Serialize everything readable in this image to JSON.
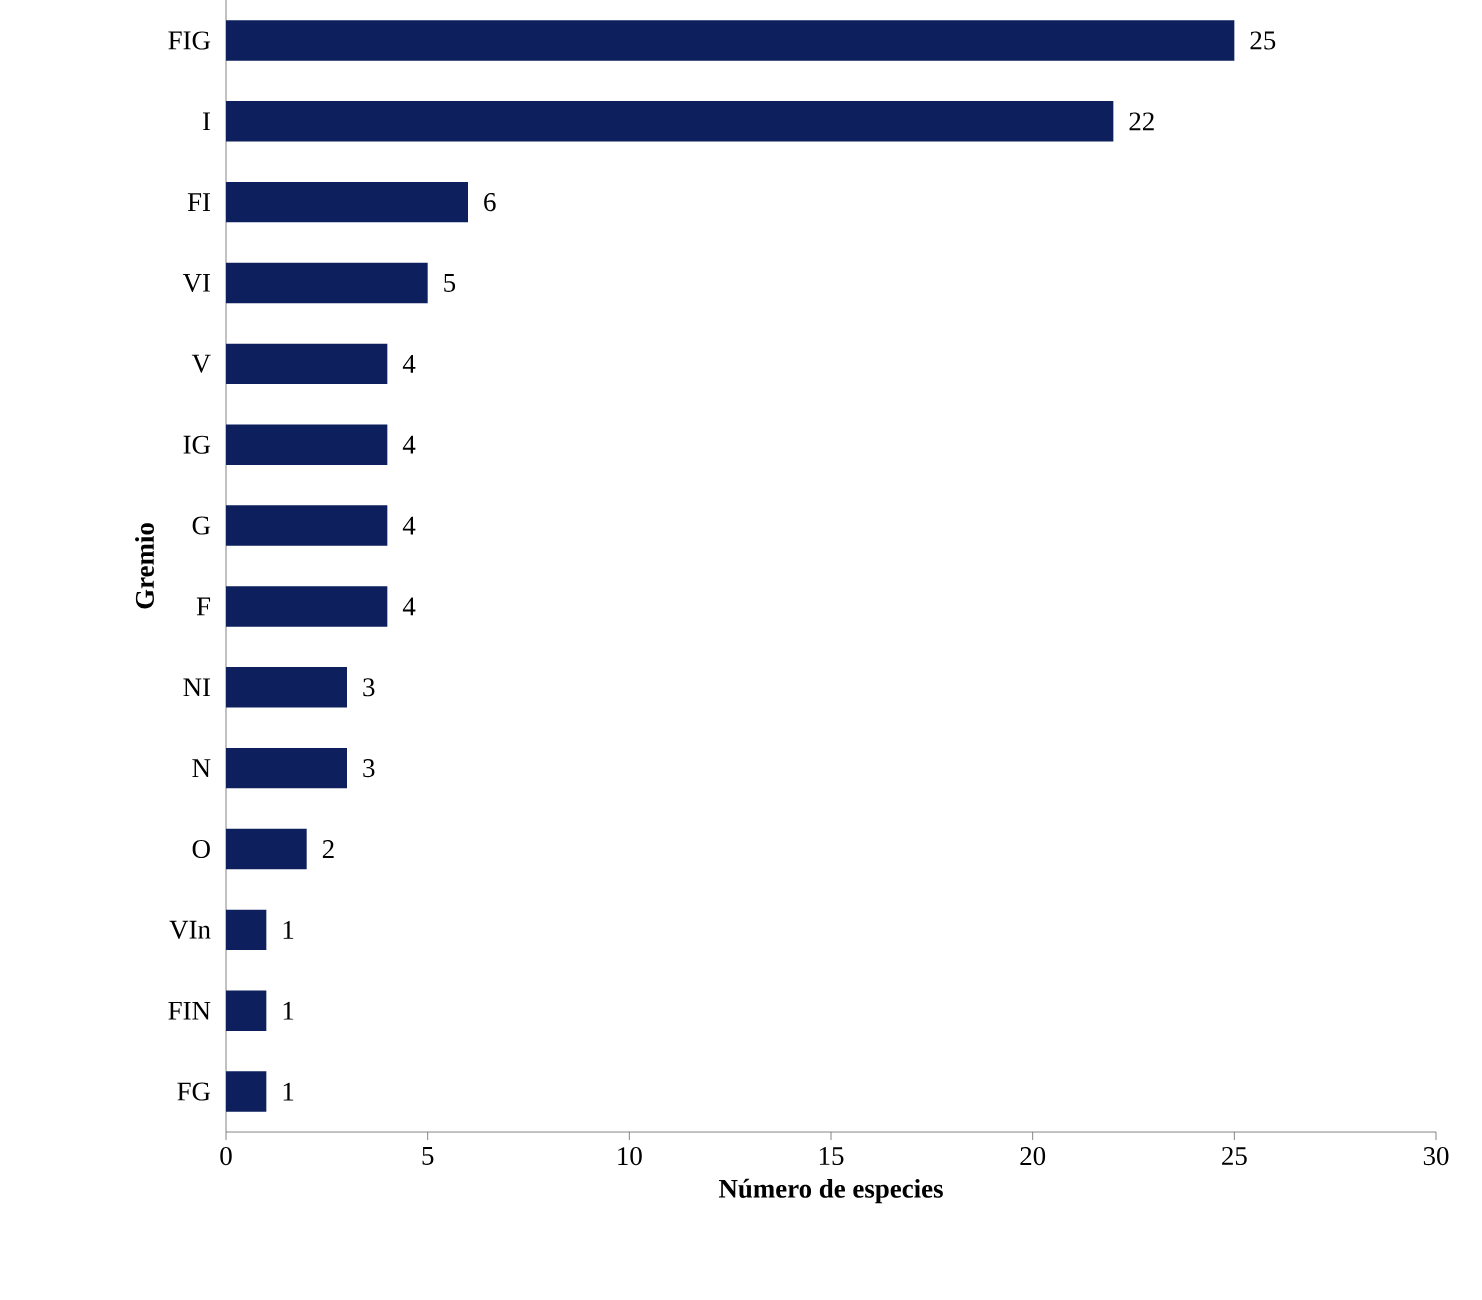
{
  "chart_data": {
    "type": "bar",
    "orientation": "horizontal",
    "xlabel": "Número de especies",
    "ylabel": "Gremio",
    "categories": [
      "FIG",
      "I",
      "FI",
      "VI",
      "V",
      "IG",
      "G",
      "F",
      "NI",
      "N",
      "O",
      "VIn",
      "FIN",
      "FG"
    ],
    "values": [
      25,
      22,
      6,
      5,
      4,
      4,
      4,
      4,
      3,
      3,
      2,
      1,
      1,
      1
    ],
    "color": "#0d1f5c",
    "xlim": [
      0,
      30
    ],
    "xticks": [
      0,
      5,
      10,
      15,
      20,
      25,
      30
    ],
    "grid": false,
    "data_labels": true
  }
}
